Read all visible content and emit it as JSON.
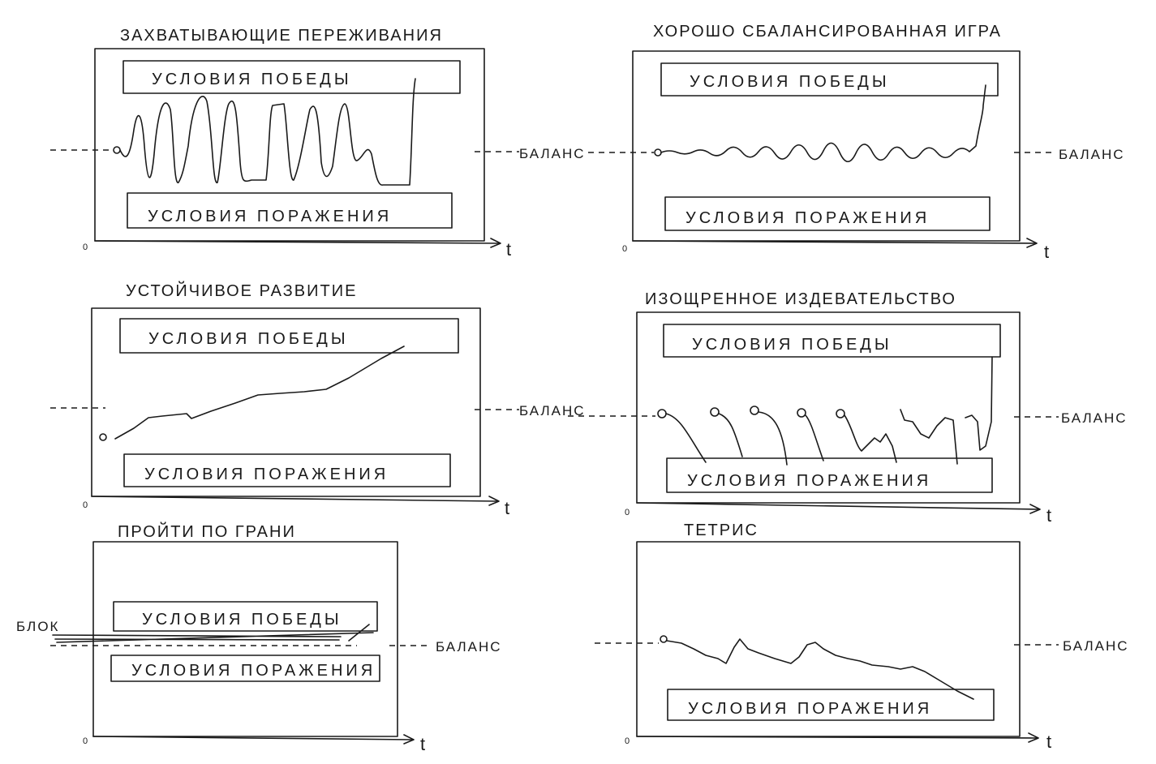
{
  "labels": {
    "win": "УСЛОВИЯ ПОБЕДЫ",
    "lose": "УСЛОВИЯ ПОРАЖЕНИЯ",
    "balance": "БАЛАНС",
    "block": "БЛОК",
    "time_axis": "t",
    "origin": "0"
  },
  "panels": [
    {
      "title": "ЗАХВАТЫВАЮЩИЕ ПЕРЕЖИВАНИЯ"
    },
    {
      "title": "ХОРОШО СБАЛАНСИРОВАННАЯ ИГРА"
    },
    {
      "title": "УСТОЙЧИВОЕ РАЗВИТИЕ"
    },
    {
      "title": "ИЗОЩРЕННОЕ ИЗДЕВАТЕЛЬСТВО"
    },
    {
      "title": "ПРОЙТИ ПО ГРАНИ"
    },
    {
      "title": "ТЕТРИС"
    }
  ]
}
